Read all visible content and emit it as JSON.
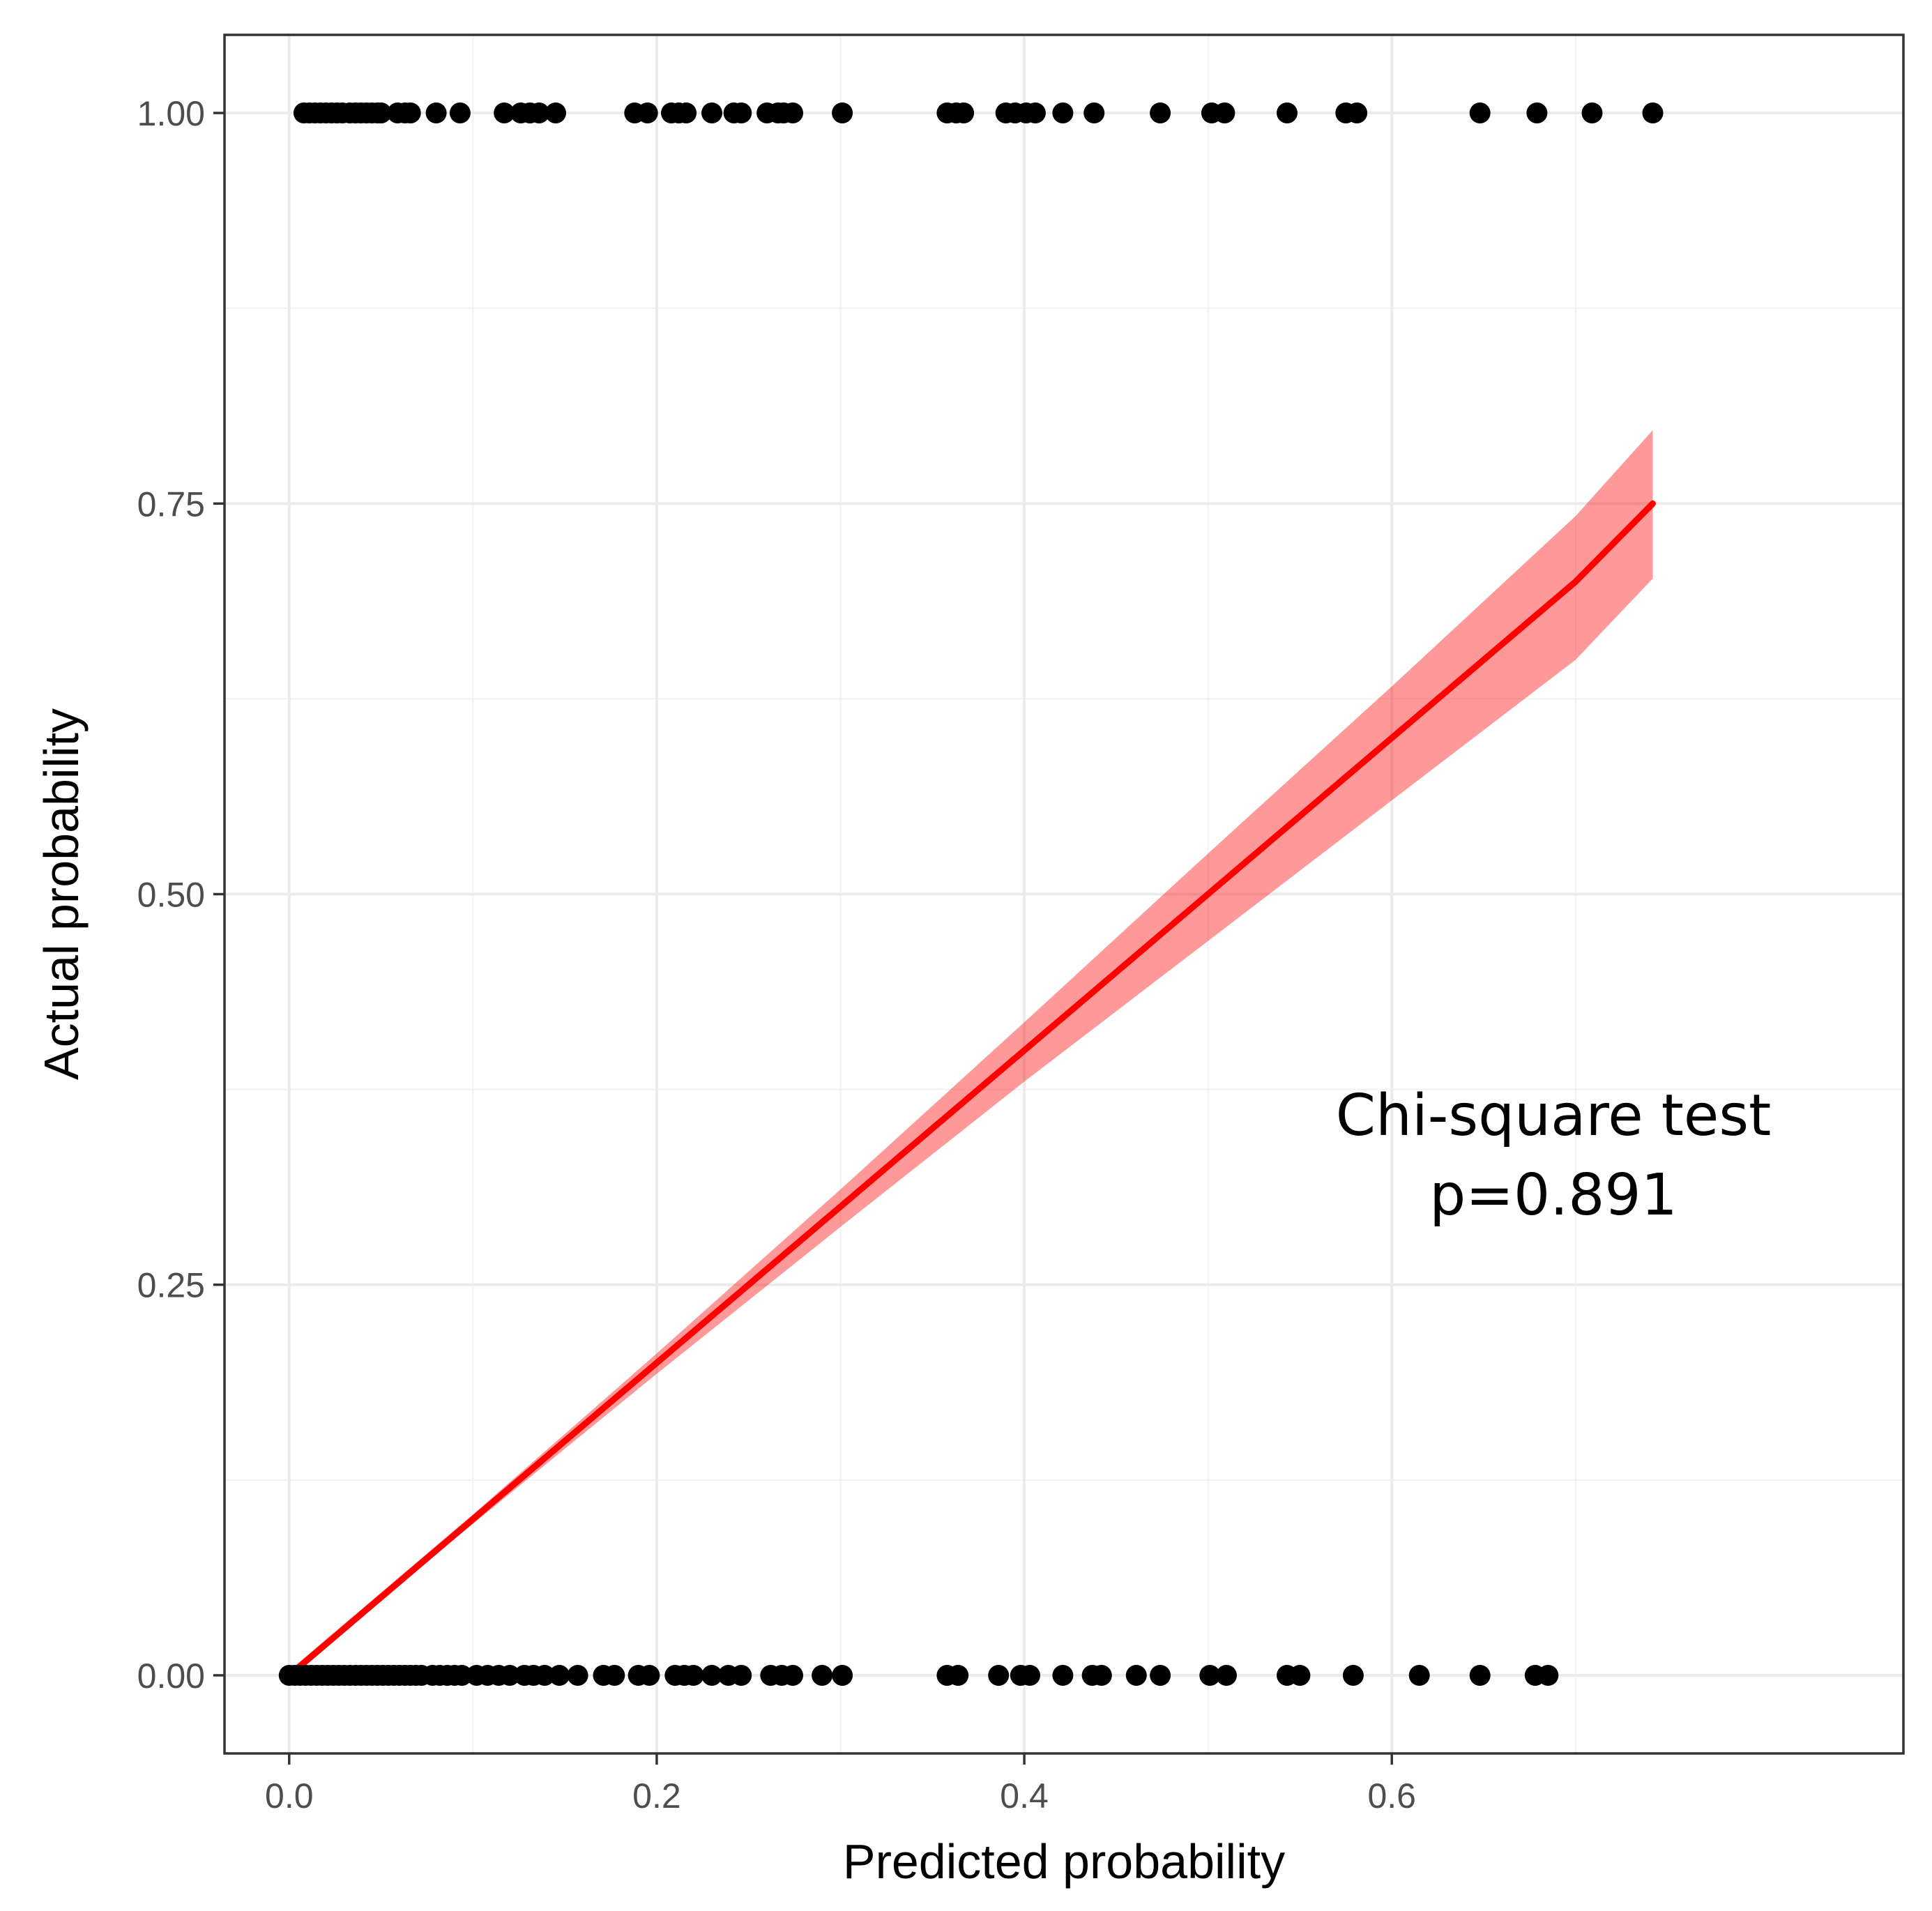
{
  "chart_data": {
    "type": "scatter",
    "title": "",
    "xlabel": "Predicted probability",
    "ylabel": "Actual probability",
    "xlim": [
      -0.0352,
      0.8784
    ],
    "ylim": [
      -0.05,
      1.05
    ],
    "x_ticks": [
      0.0,
      0.2,
      0.4,
      0.6
    ],
    "x_tick_labels": [
      "0.0",
      "0.2",
      "0.4",
      "0.6"
    ],
    "y_ticks": [
      0.0,
      0.25,
      0.5,
      0.75,
      1.0
    ],
    "y_tick_labels": [
      "0.00",
      "0.25",
      "0.50",
      "0.75",
      "1.00"
    ],
    "grid": true,
    "legend": "none",
    "annotation": {
      "lines": [
        "Chi-square test",
        "p=0.891"
      ]
    },
    "series": [
      {
        "kind": "points",
        "color": "#000000",
        "y": 1,
        "x": [
          0.008,
          0.011,
          0.014,
          0.017,
          0.02,
          0.023,
          0.026,
          0.029,
          0.033,
          0.036,
          0.039,
          0.042,
          0.045,
          0.048,
          0.05,
          0.059,
          0.063,
          0.066,
          0.08,
          0.093,
          0.117,
          0.126,
          0.131,
          0.136,
          0.145,
          0.188,
          0.195,
          0.208,
          0.212,
          0.216,
          0.23,
          0.242,
          0.246,
          0.26,
          0.266,
          0.269,
          0.274,
          0.301,
          0.358,
          0.363,
          0.367,
          0.39,
          0.395,
          0.401,
          0.406,
          0.421,
          0.438,
          0.474,
          0.502,
          0.509,
          0.543,
          0.575,
          0.581,
          0.648,
          0.679,
          0.709,
          0.742
        ]
      },
      {
        "kind": "points",
        "color": "#000000",
        "y": 0,
        "x": [
          0.0,
          0.003,
          0.006,
          0.009,
          0.012,
          0.015,
          0.018,
          0.021,
          0.024,
          0.027,
          0.03,
          0.033,
          0.036,
          0.039,
          0.042,
          0.045,
          0.048,
          0.051,
          0.054,
          0.057,
          0.06,
          0.063,
          0.066,
          0.069,
          0.072,
          0.078,
          0.082,
          0.086,
          0.09,
          0.094,
          0.102,
          0.108,
          0.114,
          0.12,
          0.128,
          0.133,
          0.139,
          0.147,
          0.157,
          0.171,
          0.177,
          0.19,
          0.196,
          0.21,
          0.215,
          0.22,
          0.23,
          0.239,
          0.246,
          0.262,
          0.268,
          0.274,
          0.29,
          0.301,
          0.358,
          0.364,
          0.386,
          0.398,
          0.403,
          0.421,
          0.437,
          0.442,
          0.461,
          0.474,
          0.501,
          0.51,
          0.543,
          0.55,
          0.579,
          0.615,
          0.648,
          0.678,
          0.685
        ]
      },
      {
        "kind": "line",
        "color": "#ff0000",
        "x": [
          0.0,
          0.1,
          0.2,
          0.3,
          0.4,
          0.5,
          0.6,
          0.7,
          0.742
        ],
        "y": [
          0.0,
          0.1,
          0.2,
          0.3,
          0.4,
          0.5,
          0.6,
          0.7,
          0.75
        ]
      },
      {
        "kind": "band",
        "color": "#ff0000",
        "opacity": 0.4,
        "x": [
          0.0,
          0.1,
          0.2,
          0.3,
          0.4,
          0.5,
          0.6,
          0.7,
          0.742
        ],
        "lower": [
          0.0,
          0.097,
          0.193,
          0.287,
          0.38,
          0.47,
          0.56,
          0.65,
          0.702
        ],
        "upper": [
          0.003,
          0.103,
          0.206,
          0.311,
          0.418,
          0.526,
          0.633,
          0.742,
          0.797
        ]
      }
    ]
  }
}
